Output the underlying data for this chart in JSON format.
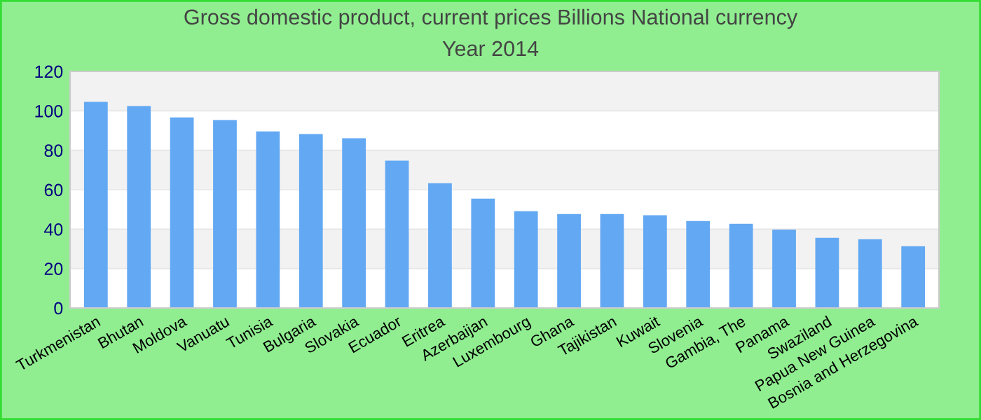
{
  "chart_data": {
    "type": "bar",
    "title": "Gross domestic product, current prices Billions National currency",
    "subtitle": "Year 2014",
    "categories": [
      "Turkmenistan",
      "Bhutan",
      "Moldova",
      "Vanuatu",
      "Tunisia",
      "Bulgaria",
      "Slovakia",
      "Ecuador",
      "Eritrea",
      "Azerbaijan",
      "Luxembourg",
      "Ghana",
      "Tajikistan",
      "Kuwait",
      "Slovenia",
      "Gambia, The",
      "Panama",
      "Swaziland",
      "Papua New Guinea",
      "Bosnia and Herzegovina"
    ],
    "values": [
      104.6,
      102.4,
      96.7,
      95.3,
      89.6,
      88.2,
      86.1,
      74.7,
      63.3,
      55.5,
      49.1,
      47.7,
      47.7,
      47.0,
      44.1,
      42.7,
      39.8,
      35.6,
      34.9,
      31.3
    ],
    "color": "#62a8f3",
    "ylim": [
      0,
      120
    ],
    "yticks": [
      0,
      20,
      40,
      60,
      80,
      100,
      120
    ],
    "grid": "y",
    "legend": false
  }
}
